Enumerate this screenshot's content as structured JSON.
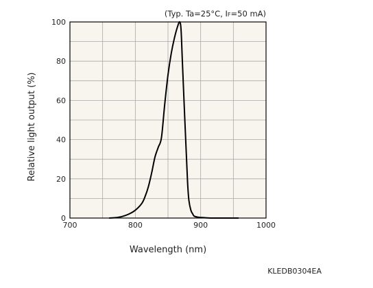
{
  "chart_data": {
    "type": "line",
    "title": "",
    "condition_note": {
      "prefix": "(Typ. Ta=25°C, I",
      "subscript": "F",
      "suffix": "=50 mA)"
    },
    "xlabel": "Wavelength (nm)",
    "ylabel": "Relative light output (%)",
    "xlim": [
      700,
      1000
    ],
    "ylim": [
      0,
      100
    ],
    "x_ticks": [
      700,
      800,
      900,
      1000
    ],
    "y_ticks": [
      0,
      20,
      40,
      60,
      80,
      100
    ],
    "x_minor_step": 50,
    "y_minor_step": 10,
    "grid": true,
    "plot_background": "#f8f5ee",
    "grid_color": "#a8a8a8",
    "line_color": "#000000",
    "series": [
      {
        "x": [
          760,
          770,
          780,
          790,
          800,
          810,
          815,
          820,
          825,
          830,
          835,
          840,
          845,
          850,
          855,
          860,
          865,
          868,
          870,
          872,
          875,
          878,
          880,
          882,
          885,
          888,
          890,
          895,
          900,
          910,
          920,
          935,
          950,
          958
        ],
        "y": [
          0,
          0.2,
          0.8,
          2,
          4,
          7.5,
          11,
          16,
          23,
          31,
          36,
          41,
          58,
          73,
          84,
          92,
          98,
          100,
          96,
          80,
          56,
          33,
          18,
          9,
          4,
          2,
          1,
          0.5,
          0.3,
          0.1,
          0,
          0,
          0,
          0
        ]
      }
    ]
  },
  "footer": {
    "code": "KLEDB0304EA"
  }
}
